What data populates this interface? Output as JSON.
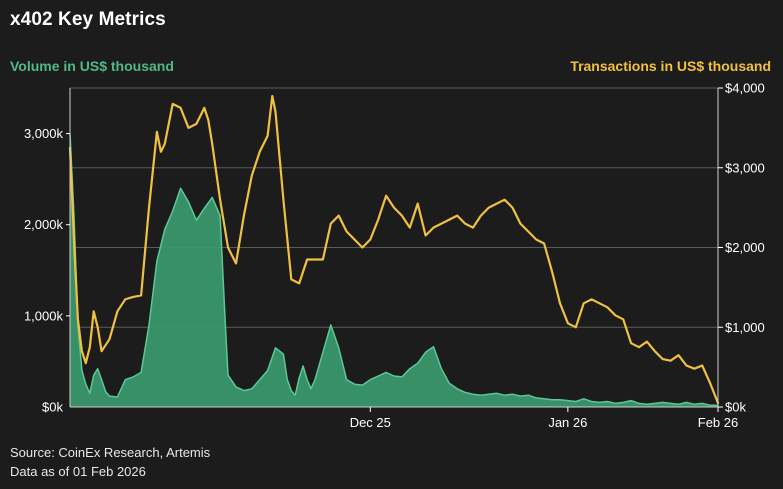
{
  "chart_data": {
    "type": "area+line",
    "title": "x402 Key Metrics",
    "left_axis_label": "Volume in US$ thousand",
    "right_axis_label": "Transactions in US$ thousand",
    "left_axis": {
      "range": [
        0,
        3500
      ],
      "ticks": [
        0,
        1000,
        2000,
        3000
      ],
      "tick_labels": [
        "$0k",
        "1,000k",
        "2,000k",
        "3,000k"
      ]
    },
    "right_axis": {
      "range": [
        0,
        4000
      ],
      "ticks": [
        0,
        1000,
        2000,
        3000,
        4000
      ],
      "tick_labels": [
        "$0k",
        "$1,000",
        "$2,000",
        "$3,000",
        "$4,000"
      ]
    },
    "x_axis": {
      "range_days": [
        0,
        82
      ],
      "ticks": [
        {
          "day": 38,
          "label": "Dec 25"
        },
        {
          "day": 63,
          "label": "Jan 26"
        },
        {
          "day": 82,
          "label": "Feb 26"
        }
      ]
    },
    "series": [
      {
        "name": "Volume in US$ thousand",
        "axis": "left",
        "style": "area",
        "color": "#3a9a6e",
        "points": [
          [
            0,
            3000
          ],
          [
            0.5,
            2100
          ],
          [
            1,
            900
          ],
          [
            1.5,
            400
          ],
          [
            2,
            250
          ],
          [
            2.5,
            150
          ],
          [
            3,
            350
          ],
          [
            3.5,
            420
          ],
          [
            4,
            300
          ],
          [
            4.5,
            170
          ],
          [
            5,
            120
          ],
          [
            6,
            110
          ],
          [
            7,
            300
          ],
          [
            8,
            330
          ],
          [
            9,
            380
          ],
          [
            10,
            900
          ],
          [
            11,
            1600
          ],
          [
            12,
            1950
          ],
          [
            13,
            2150
          ],
          [
            14,
            2400
          ],
          [
            15,
            2250
          ],
          [
            16,
            2050
          ],
          [
            17,
            2180
          ],
          [
            18,
            2300
          ],
          [
            19,
            2100
          ],
          [
            19.6,
            1000
          ],
          [
            20,
            350
          ],
          [
            21,
            220
          ],
          [
            22,
            180
          ],
          [
            23,
            200
          ],
          [
            24,
            300
          ],
          [
            25,
            400
          ],
          [
            26,
            650
          ],
          [
            27,
            580
          ],
          [
            27.5,
            300
          ],
          [
            28,
            180
          ],
          [
            28.5,
            130
          ],
          [
            29,
            320
          ],
          [
            29.5,
            450
          ],
          [
            30,
            300
          ],
          [
            30.5,
            200
          ],
          [
            31,
            300
          ],
          [
            32,
            600
          ],
          [
            33,
            900
          ],
          [
            34,
            650
          ],
          [
            35,
            300
          ],
          [
            36,
            250
          ],
          [
            37,
            240
          ],
          [
            38,
            300
          ],
          [
            39,
            340
          ],
          [
            40,
            380
          ],
          [
            41,
            340
          ],
          [
            42,
            330
          ],
          [
            43,
            420
          ],
          [
            44,
            480
          ],
          [
            45,
            600
          ],
          [
            46,
            660
          ],
          [
            47,
            420
          ],
          [
            48,
            260
          ],
          [
            49,
            200
          ],
          [
            50,
            160
          ],
          [
            51,
            140
          ],
          [
            52,
            130
          ],
          [
            53,
            140
          ],
          [
            54,
            150
          ],
          [
            55,
            130
          ],
          [
            56,
            140
          ],
          [
            57,
            120
          ],
          [
            58,
            130
          ],
          [
            59,
            100
          ],
          [
            60,
            90
          ],
          [
            61,
            80
          ],
          [
            62,
            80
          ],
          [
            63,
            70
          ],
          [
            64,
            60
          ],
          [
            65,
            90
          ],
          [
            66,
            60
          ],
          [
            67,
            50
          ],
          [
            68,
            60
          ],
          [
            69,
            40
          ],
          [
            70,
            50
          ],
          [
            71,
            70
          ],
          [
            72,
            40
          ],
          [
            73,
            30
          ],
          [
            74,
            40
          ],
          [
            75,
            50
          ],
          [
            76,
            40
          ],
          [
            77,
            30
          ],
          [
            78,
            50
          ],
          [
            79,
            30
          ],
          [
            80,
            40
          ],
          [
            81,
            20
          ],
          [
            82,
            20
          ]
        ]
      },
      {
        "name": "Transactions in US$ thousand",
        "axis": "right",
        "style": "line",
        "color": "#f0c040",
        "points": [
          [
            0,
            3250
          ],
          [
            0.6,
            1900
          ],
          [
            1,
            1100
          ],
          [
            1.5,
            700
          ],
          [
            2,
            550
          ],
          [
            2.5,
            750
          ],
          [
            3,
            1200
          ],
          [
            3.5,
            1000
          ],
          [
            4,
            700
          ],
          [
            5,
            850
          ],
          [
            6,
            1200
          ],
          [
            7,
            1350
          ],
          [
            8,
            1380
          ],
          [
            9,
            1400
          ],
          [
            10,
            2500
          ],
          [
            11,
            3450
          ],
          [
            11.5,
            3200
          ],
          [
            12,
            3300
          ],
          [
            13,
            3800
          ],
          [
            14,
            3750
          ],
          [
            15,
            3500
          ],
          [
            16,
            3550
          ],
          [
            17,
            3750
          ],
          [
            17.5,
            3600
          ],
          [
            18,
            3300
          ],
          [
            19,
            2600
          ],
          [
            20,
            2000
          ],
          [
            21,
            1800
          ],
          [
            22,
            2400
          ],
          [
            23,
            2900
          ],
          [
            24,
            3200
          ],
          [
            25,
            3400
          ],
          [
            25.6,
            3900
          ],
          [
            26,
            3700
          ],
          [
            27,
            2600
          ],
          [
            28,
            1600
          ],
          [
            29,
            1550
          ],
          [
            30,
            1850
          ],
          [
            31,
            1850
          ],
          [
            32,
            1850
          ],
          [
            33,
            2300
          ],
          [
            34,
            2400
          ],
          [
            35,
            2200
          ],
          [
            36,
            2100
          ],
          [
            37,
            2000
          ],
          [
            38,
            2100
          ],
          [
            39,
            2350
          ],
          [
            40,
            2650
          ],
          [
            41,
            2500
          ],
          [
            42,
            2400
          ],
          [
            43,
            2250
          ],
          [
            44,
            2550
          ],
          [
            45,
            2150
          ],
          [
            46,
            2250
          ],
          [
            47,
            2300
          ],
          [
            48,
            2350
          ],
          [
            49,
            2400
          ],
          [
            50,
            2300
          ],
          [
            51,
            2250
          ],
          [
            52,
            2400
          ],
          [
            53,
            2500
          ],
          [
            54,
            2550
          ],
          [
            55,
            2600
          ],
          [
            56,
            2500
          ],
          [
            57,
            2300
          ],
          [
            58,
            2200
          ],
          [
            59,
            2100
          ],
          [
            60,
            2050
          ],
          [
            61,
            1700
          ],
          [
            62,
            1300
          ],
          [
            63,
            1050
          ],
          [
            64,
            1000
          ],
          [
            65,
            1300
          ],
          [
            66,
            1350
          ],
          [
            67,
            1300
          ],
          [
            68,
            1250
          ],
          [
            69,
            1150
          ],
          [
            70,
            1100
          ],
          [
            71,
            800
          ],
          [
            72,
            750
          ],
          [
            73,
            820
          ],
          [
            74,
            700
          ],
          [
            75,
            600
          ],
          [
            76,
            580
          ],
          [
            77,
            650
          ],
          [
            78,
            520
          ],
          [
            79,
            480
          ],
          [
            80,
            520
          ],
          [
            81,
            300
          ],
          [
            82,
            50
          ]
        ]
      }
    ]
  },
  "source": {
    "line1": "Source: CoinEx Research, Artemis",
    "line2": "Data as of 01 Feb 2026"
  }
}
